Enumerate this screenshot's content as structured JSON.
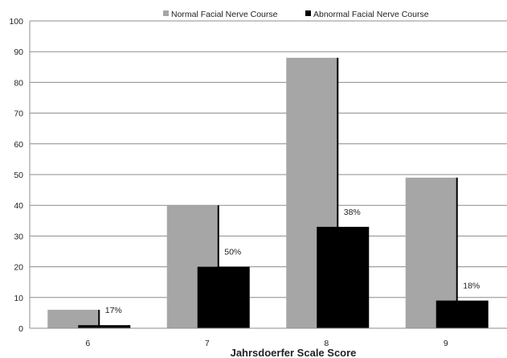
{
  "chart_data": {
    "type": "bar",
    "title": "",
    "xlabel": "Jahrsdoerfer Scale Score",
    "ylabel": "",
    "ylim": [
      0,
      100
    ],
    "yticks": [
      0,
      10,
      20,
      30,
      40,
      50,
      60,
      70,
      80,
      90,
      100
    ],
    "grid": "horizontal",
    "legend_position": "top",
    "categories": [
      "6",
      "7",
      "8",
      "9"
    ],
    "series": [
      {
        "name": "Normal Facial Nerve Course",
        "color": "#a6a6a6",
        "values": [
          6,
          40,
          88,
          49
        ],
        "labels": [
          "",
          "",
          "",
          ""
        ]
      },
      {
        "name": "Abnormal Facial Nerve Course",
        "color": "#000000",
        "values": [
          1,
          20,
          33,
          9
        ],
        "labels": [
          "17%",
          "50%",
          "38%",
          "18%"
        ]
      }
    ]
  }
}
